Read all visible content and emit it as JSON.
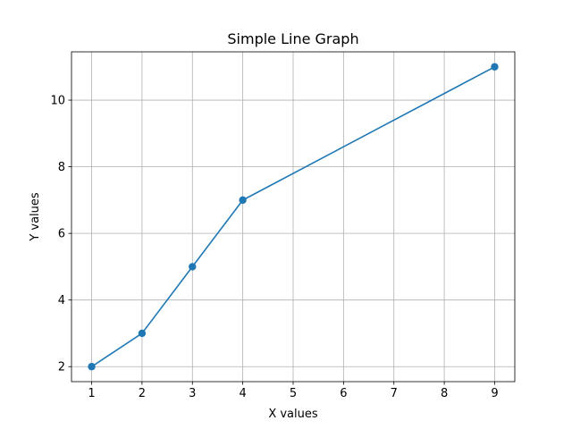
{
  "chart_data": {
    "type": "line",
    "title": "Simple Line Graph",
    "xlabel": "X values",
    "ylabel": "Y values",
    "grid": true,
    "x": [
      1,
      2,
      3,
      4,
      9
    ],
    "series": [
      {
        "values": [
          2,
          3,
          5,
          7,
          11
        ],
        "color": "#1f77b4",
        "marker": "circle"
      }
    ],
    "xlim": [
      0.6,
      9.4
    ],
    "ylim": [
      1.55,
      11.45
    ],
    "xticks": [
      1,
      2,
      3,
      4,
      5,
      6,
      7,
      8,
      9
    ],
    "yticks": [
      2,
      4,
      6,
      8,
      10
    ]
  }
}
